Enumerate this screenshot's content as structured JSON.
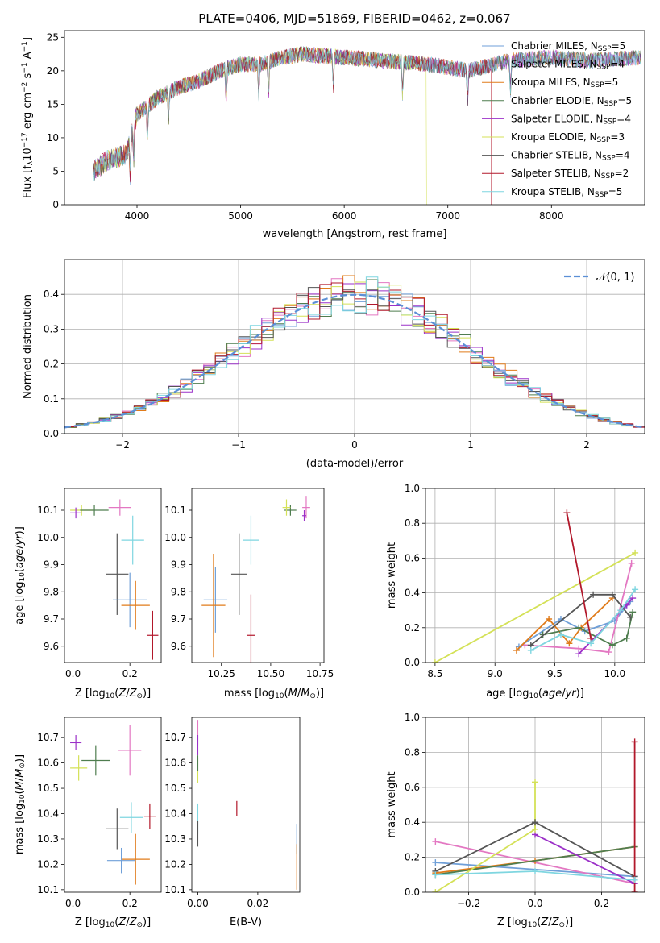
{
  "figure_title": "PLATE=0406, MJD=51869, FIBERID=0462, z=0.067",
  "models": [
    {
      "label": "Chabrier MILES, N",
      "n": "5",
      "color": "#6f9fd8"
    },
    {
      "label": "Salpeter MILES, N",
      "n": "4",
      "color": "#e377c2"
    },
    {
      "label": "Kroupa MILES, N",
      "n": "5",
      "color": "#e07b1a"
    },
    {
      "label": "Chabrier ELODIE, N",
      "n": "5",
      "color": "#4f7d4f"
    },
    {
      "label": "Salpeter ELODIE, N",
      "n": "4",
      "color": "#9b30c8"
    },
    {
      "label": "Kroupa ELODIE, N",
      "n": "3",
      "color": "#d4e157"
    },
    {
      "label": "Chabrier STELIB, N",
      "n": "4",
      "color": "#555555"
    },
    {
      "label": "Salpeter STELIB, N",
      "n": "2",
      "color": "#b2182b"
    },
    {
      "label": "Kroupa STELIB, N",
      "n": "5",
      "color": "#7fd6e0"
    }
  ],
  "legend_sub": "SSP",
  "chart_data": [
    {
      "id": "spectrum",
      "type": "line",
      "xlabel": "wavelength [Angstrom, rest frame]",
      "ylabel": "Flux [f",
      "ylabel_parts": [
        "Flux [f",
        "λ",
        "10",
        "−17",
        " erg cm",
        "−2",
        " s",
        "−1",
        " A",
        "−1",
        "]"
      ],
      "xlim": [
        3300,
        8900
      ],
      "ylim": [
        0,
        26
      ],
      "xticks": [
        4000,
        5000,
        6000,
        7000,
        8000
      ],
      "yticks": [
        0,
        5,
        10,
        15,
        20,
        25
      ],
      "continuum": [
        [
          3580,
          5
        ],
        [
          3700,
          6.5
        ],
        [
          3900,
          7.5
        ],
        [
          4000,
          13.5
        ],
        [
          4200,
          16
        ],
        [
          4400,
          17.5
        ],
        [
          4600,
          18.5
        ],
        [
          4800,
          20
        ],
        [
          5000,
          21
        ],
        [
          5200,
          21
        ],
        [
          5400,
          22
        ],
        [
          5600,
          22.5
        ],
        [
          6000,
          22
        ],
        [
          6400,
          21.5
        ],
        [
          6800,
          21
        ],
        [
          7200,
          20
        ],
        [
          7600,
          21.5
        ],
        [
          8000,
          22
        ],
        [
          8400,
          21.5
        ],
        [
          8860,
          22
        ]
      ],
      "absorption_lines": [
        3934,
        3969,
        4101,
        4304,
        4861,
        5175,
        5270,
        5895,
        6563,
        7190,
        7605
      ],
      "grid": false,
      "legend": "top-right"
    },
    {
      "id": "residuals",
      "type": "histogram",
      "xlabel": "(data-model)/error",
      "ylabel": "Normed distribution",
      "xlim": [
        -2.5,
        2.5
      ],
      "ylim": [
        0,
        0.5
      ],
      "xticks": [
        -2,
        -1,
        0,
        1,
        2
      ],
      "yticks": [
        0,
        0.1,
        0.2,
        0.3,
        0.4
      ],
      "bin_width": 0.1,
      "reference_curve": "𝒩(0, 1)",
      "grid": true,
      "legend": "top-right"
    },
    {
      "id": "age_vs_Z",
      "type": "scatter",
      "xlabel": "Z [log",
      "ylabel": "age  [log",
      "xlim": [
        -0.03,
        0.31
      ],
      "ylim": [
        9.54,
        10.18
      ],
      "xticks": [
        0.0,
        0.2
      ],
      "yticks": [
        9.6,
        9.7,
        9.8,
        9.9,
        10.0,
        10.1
      ],
      "points": [
        {
          "x": 0.03,
          "y": 10.1,
          "xerr": 0.04,
          "yerr": 0.02,
          "model": 5
        },
        {
          "x": 0.075,
          "y": 10.1,
          "xerr": 0.05,
          "yerr": 0.02,
          "model": 3
        },
        {
          "x": 0.01,
          "y": 10.09,
          "xerr": 0.02,
          "yerr": 0.02,
          "model": 4
        },
        {
          "x": 0.165,
          "y": 10.11,
          "xerr": 0.04,
          "yerr": 0.03,
          "model": 1
        },
        {
          "x": 0.21,
          "y": 9.99,
          "xerr": 0.04,
          "yerr": 0.09,
          "model": 8
        },
        {
          "x": 0.155,
          "y": 9.865,
          "xerr": 0.04,
          "yerr": 0.15,
          "model": 6
        },
        {
          "x": 0.2,
          "y": 9.77,
          "xerr": 0.06,
          "yerr": 0.1,
          "model": 0
        },
        {
          "x": 0.22,
          "y": 9.75,
          "xerr": 0.05,
          "yerr": 0.09,
          "model": 2
        },
        {
          "x": 0.28,
          "y": 9.64,
          "xerr": 0.02,
          "yerr": 0.09,
          "model": 7
        }
      ]
    },
    {
      "id": "age_vs_mass",
      "type": "scatter",
      "xlabel": "mass [log",
      "ylabel": "",
      "xlim": [
        10.1,
        10.77
      ],
      "ylim": [
        9.54,
        10.18
      ],
      "xticks": [
        10.25,
        10.5,
        10.75
      ],
      "xtick_labels": [
        "10.25",
        "10.50",
        "10.75"
      ],
      "yticks": [
        9.6,
        9.7,
        9.8,
        9.9,
        10.0,
        10.1
      ],
      "points": [
        {
          "x": 10.68,
          "y": 10.11,
          "xerr": 0.02,
          "yerr": 0.04,
          "model": 1
        },
        {
          "x": 10.67,
          "y": 10.08,
          "xerr": 0.01,
          "yerr": 0.02,
          "model": 4
        },
        {
          "x": 10.6,
          "y": 10.1,
          "xerr": 0.03,
          "yerr": 0.02,
          "model": 3
        },
        {
          "x": 10.58,
          "y": 10.11,
          "xerr": 0.02,
          "yerr": 0.03,
          "model": 5
        },
        {
          "x": 10.4,
          "y": 9.99,
          "xerr": 0.04,
          "yerr": 0.09,
          "model": 8
        },
        {
          "x": 10.34,
          "y": 9.865,
          "xerr": 0.04,
          "yerr": 0.15,
          "model": 6
        },
        {
          "x": 10.22,
          "y": 9.77,
          "xerr": 0.06,
          "yerr": 0.12,
          "model": 0
        },
        {
          "x": 10.21,
          "y": 9.75,
          "xerr": 0.06,
          "yerr": 0.19,
          "model": 2
        },
        {
          "x": 10.4,
          "y": 9.64,
          "xerr": 0.02,
          "yerr": 0.15,
          "model": 7
        }
      ]
    },
    {
      "id": "mass_weight_vs_age",
      "type": "line",
      "xlabel": "age  [log",
      "ylabel": "mass weight",
      "xlim": [
        8.42,
        10.25
      ],
      "ylim": [
        0,
        1.0
      ],
      "xticks": [
        8.5,
        9.0,
        9.5,
        10.0
      ],
      "yticks": [
        0,
        0.2,
        0.4,
        0.6,
        0.8,
        1.0
      ],
      "grid": true,
      "series": [
        {
          "model": 0,
          "points": [
            [
              9.2,
              0.09
            ],
            [
              9.55,
              0.25
            ],
            [
              9.75,
              0.18
            ],
            [
              10.0,
              0.24
            ],
            [
              10.13,
              0.35
            ]
          ]
        },
        {
          "model": 1,
          "points": [
            [
              9.25,
              0.1
            ],
            [
              9.7,
              0.08
            ],
            [
              9.95,
              0.06
            ],
            [
              10.14,
              0.57
            ]
          ]
        },
        {
          "model": 2,
          "points": [
            [
              9.18,
              0.07
            ],
            [
              9.45,
              0.25
            ],
            [
              9.62,
              0.11
            ],
            [
              9.72,
              0.2
            ],
            [
              9.98,
              0.37
            ]
          ]
        },
        {
          "model": 3,
          "points": [
            [
              9.4,
              0.16
            ],
            [
              9.7,
              0.2
            ],
            [
              9.98,
              0.1
            ],
            [
              10.1,
              0.14
            ],
            [
              10.15,
              0.29
            ]
          ]
        },
        {
          "model": 4,
          "points": [
            [
              9.7,
              0.05
            ],
            [
              10.1,
              0.33
            ],
            [
              10.15,
              0.37
            ]
          ]
        },
        {
          "model": 5,
          "points": [
            [
              8.5,
              0.0
            ],
            [
              10.17,
              0.63
            ]
          ]
        },
        {
          "model": 6,
          "points": [
            [
              9.3,
              0.1
            ],
            [
              9.82,
              0.39
            ],
            [
              9.98,
              0.39
            ],
            [
              10.13,
              0.26
            ]
          ]
        },
        {
          "model": 7,
          "points": [
            [
              9.6,
              0.86
            ],
            [
              9.8,
              0.14
            ]
          ]
        },
        {
          "model": 8,
          "points": [
            [
              9.3,
              0.07
            ],
            [
              9.55,
              0.16
            ],
            [
              9.8,
              0.11
            ],
            [
              10.05,
              0.3
            ],
            [
              10.17,
              0.42
            ]
          ]
        }
      ]
    },
    {
      "id": "mass_vs_Z",
      "type": "scatter",
      "xlabel": "Z [log",
      "ylabel": "mass [log",
      "xlim": [
        -0.03,
        0.31
      ],
      "ylim": [
        10.09,
        10.78
      ],
      "xticks": [
        0.0,
        0.2
      ],
      "yticks": [
        10.1,
        10.2,
        10.3,
        10.4,
        10.5,
        10.6,
        10.7
      ],
      "points": [
        {
          "x": 0.01,
          "y": 10.68,
          "xerr": 0.02,
          "yerr": 0.03,
          "model": 4
        },
        {
          "x": 0.2,
          "y": 10.65,
          "xerr": 0.04,
          "yerr": 0.1,
          "model": 1
        },
        {
          "x": 0.08,
          "y": 10.61,
          "xerr": 0.05,
          "yerr": 0.06,
          "model": 3
        },
        {
          "x": 0.02,
          "y": 10.58,
          "xerr": 0.03,
          "yerr": 0.05,
          "model": 5
        },
        {
          "x": 0.27,
          "y": 10.39,
          "xerr": 0.02,
          "yerr": 0.05,
          "model": 7
        },
        {
          "x": 0.205,
          "y": 10.385,
          "xerr": 0.04,
          "yerr": 0.06,
          "model": 8
        },
        {
          "x": 0.155,
          "y": 10.34,
          "xerr": 0.04,
          "yerr": 0.08,
          "model": 6
        },
        {
          "x": 0.22,
          "y": 10.22,
          "xerr": 0.05,
          "yerr": 0.1,
          "model": 2
        },
        {
          "x": 0.17,
          "y": 10.215,
          "xerr": 0.05,
          "yerr": 0.05,
          "model": 0
        }
      ]
    },
    {
      "id": "mass_vs_ebv",
      "type": "scatter",
      "xlabel": "E(B-V)",
      "ylabel": "",
      "xlim": [
        -0.002,
        0.034
      ],
      "ylim": [
        10.09,
        10.78
      ],
      "xticks": [
        0.0,
        0.02
      ],
      "xtick_labels": [
        "0.00",
        "0.02"
      ],
      "yticks": [
        10.1,
        10.2,
        10.3,
        10.4,
        10.5,
        10.6,
        10.7
      ],
      "points": [
        {
          "x": 0.0,
          "y": 10.72,
          "xerr": 0,
          "yerr": 0.05,
          "model": 1
        },
        {
          "x": 0.0,
          "y": 10.67,
          "xerr": 0,
          "yerr": 0.04,
          "model": 4
        },
        {
          "x": 0.0,
          "y": 10.57,
          "xerr": 0,
          "yerr": 0.05,
          "model": 5
        },
        {
          "x": 0.0,
          "y": 10.6,
          "xerr": 0,
          "yerr": 0.03,
          "model": 3
        },
        {
          "x": 0.0,
          "y": 10.38,
          "xerr": 0,
          "yerr": 0.06,
          "model": 8
        },
        {
          "x": 0.0,
          "y": 10.32,
          "xerr": 0,
          "yerr": 0.05,
          "model": 6
        },
        {
          "x": 0.013,
          "y": 10.42,
          "xerr": 0,
          "yerr": 0.03,
          "model": 7
        },
        {
          "x": 0.033,
          "y": 10.3,
          "xerr": 0,
          "yerr": 0.06,
          "model": 0
        },
        {
          "x": 0.033,
          "y": 10.19,
          "xerr": 0,
          "yerr": 0.09,
          "model": 2
        }
      ]
    },
    {
      "id": "mass_weight_vs_Z",
      "type": "line",
      "xlabel": "Z [log",
      "ylabel": "mass weight",
      "xlim": [
        -0.33,
        0.33
      ],
      "ylim": [
        0,
        1.0
      ],
      "xticks": [
        -0.2,
        0.0,
        0.2
      ],
      "xtick_labels": [
        "−0.2",
        "0.0",
        "0.2"
      ],
      "yticks": [
        0,
        0.2,
        0.4,
        0.6,
        0.8,
        1.0
      ],
      "grid": true,
      "series": [
        {
          "model": 0,
          "points": [
            [
              -0.3,
              0.17
            ],
            [
              0.3,
              0.09
            ]
          ]
        },
        {
          "model": 1,
          "points": [
            [
              -0.3,
              0.29
            ],
            [
              0.3,
              0.05
            ]
          ]
        },
        {
          "model": 2,
          "points": [
            [
              -0.3,
              0.11
            ],
            [
              0.0,
              0.18
            ],
            [
              0.3,
              0.26
            ]
          ]
        },
        {
          "model": 3,
          "points": [
            [
              -0.3,
              0.1
            ],
            [
              0.3,
              0.26
            ]
          ]
        },
        {
          "model": 4,
          "points": [
            [
              0.0,
              0.33
            ],
            [
              0.3,
              0.05
            ]
          ]
        },
        {
          "model": 5,
          "points": [
            [
              -0.3,
              0.0
            ],
            [
              0.0,
              0.36
            ],
            [
              0.0,
              0.63
            ]
          ]
        },
        {
          "model": 6,
          "points": [
            [
              -0.3,
              0.12
            ],
            [
              0.0,
              0.4
            ],
            [
              0.3,
              0.09
            ]
          ]
        },
        {
          "model": 7,
          "points": [
            [
              0.3,
              0.86
            ],
            [
              0.3,
              0.0
            ]
          ]
        },
        {
          "model": 8,
          "points": [
            [
              -0.3,
              0.1
            ],
            [
              0.0,
              0.12
            ],
            [
              0.3,
              0.07
            ]
          ]
        }
      ]
    }
  ]
}
